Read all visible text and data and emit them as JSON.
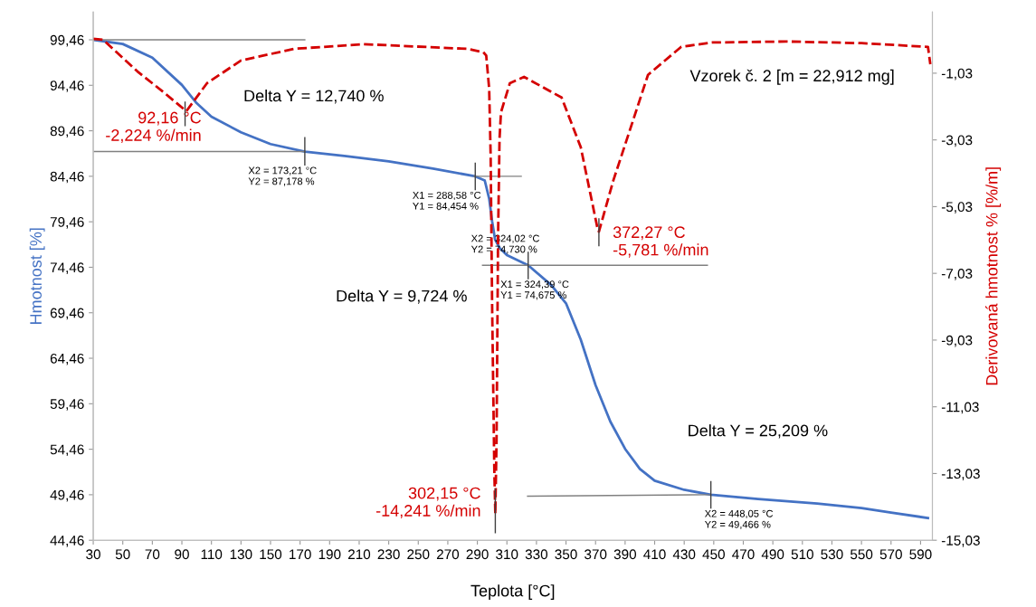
{
  "chart_data": {
    "type": "line",
    "xlabel": "Teplota [°C]",
    "ylabel": "Hmotnost [%]",
    "y2label": "Derivovaná hmotnost % [%/m]",
    "xlim": [
      30,
      598
    ],
    "xticks": [
      30,
      50,
      70,
      90,
      110,
      130,
      150,
      170,
      190,
      210,
      230,
      250,
      270,
      290,
      310,
      330,
      350,
      370,
      390,
      410,
      430,
      450,
      470,
      490,
      510,
      530,
      550,
      570,
      590
    ],
    "ylim": [
      44.46,
      102.5
    ],
    "yticks": [
      {
        "value": 44.46,
        "label": "44,46"
      },
      {
        "value": 49.46,
        "label": "49,46"
      },
      {
        "value": 54.46,
        "label": "54,46"
      },
      {
        "value": 59.46,
        "label": "59,46"
      },
      {
        "value": 64.46,
        "label": "64,46"
      },
      {
        "value": 69.46,
        "label": "69,46"
      },
      {
        "value": 74.46,
        "label": "74,46"
      },
      {
        "value": 79.46,
        "label": "79,46"
      },
      {
        "value": 84.46,
        "label": "84,46"
      },
      {
        "value": 89.46,
        "label": "89,46"
      },
      {
        "value": 94.46,
        "label": "94,46"
      },
      {
        "value": 99.46,
        "label": "99,46"
      }
    ],
    "y2lim": [
      -15.03,
      0.8
    ],
    "y2ticks": [
      {
        "value": -15.03,
        "label": "-15,03"
      },
      {
        "value": -13.03,
        "label": "-13,03"
      },
      {
        "value": -11.03,
        "label": "-11,03"
      },
      {
        "value": -9.03,
        "label": "-9,03"
      },
      {
        "value": -7.03,
        "label": "-7,03"
      },
      {
        "value": -5.03,
        "label": "-5,03"
      },
      {
        "value": -3.03,
        "label": "-3,03"
      },
      {
        "value": -1.03,
        "label": "-1,03"
      }
    ],
    "grid": false,
    "legend": false,
    "series": [
      {
        "color": "#4472c4",
        "line_style": "solid",
        "x": [
          30,
          50,
          70,
          90,
          100,
          110,
          130,
          150,
          173.21,
          200,
          230,
          260,
          288.58,
          295,
          298,
          300,
          302,
          305,
          310,
          324.39,
          340,
          350,
          360,
          370,
          380,
          390,
          400,
          410,
          430,
          448.05,
          480,
          520,
          550,
          570,
          595
        ],
        "values": [
          99.46,
          99.0,
          97.5,
          94.5,
          92.5,
          91.0,
          89.3,
          88.0,
          87.178,
          86.7,
          86.1,
          85.3,
          84.454,
          84.0,
          82.0,
          79.5,
          77.5,
          76.6,
          75.8,
          74.675,
          72.5,
          70.5,
          66.5,
          61.5,
          57.5,
          54.5,
          52.3,
          51.0,
          50.0,
          49.466,
          49.0,
          48.5,
          48.0,
          47.5,
          46.9
        ]
      },
      {
        "color": "#d40000",
        "line_style": "dashed",
        "axis": "y2",
        "x": [
          30,
          36.7,
          60,
          79,
          93,
          107,
          130,
          166,
          213,
          283,
          294,
          296,
          298,
          299,
          300,
          301.5,
          302.15,
          303,
          304,
          305,
          306,
          312,
          321.6,
          347,
          360,
          371.5,
          372.27,
          382,
          405.5,
          428,
          449,
          499,
          550,
          595,
          596.6
        ],
        "values": [
          0.0,
          -0.03,
          -0.98,
          -1.65,
          -2.17,
          -1.33,
          -0.65,
          -0.3,
          -0.16,
          -0.3,
          -0.4,
          -0.5,
          -1.5,
          -3.5,
          -8.0,
          -13.0,
          -14.241,
          -12.0,
          -6.0,
          -3.0,
          -2.2,
          -1.33,
          -1.14,
          -1.76,
          -3.25,
          -5.72,
          -5.781,
          -4.25,
          -1.08,
          -0.24,
          -0.11,
          -0.08,
          -0.13,
          -0.24,
          -0.76
        ]
      },
      {
        "color": "#808080",
        "line_style": "solid",
        "x": [
          30,
          173.21
        ],
        "values": [
          99.46,
          99.46
        ]
      },
      {
        "color": "#808080",
        "line_style": "solid",
        "x": [
          30,
          173.21
        ],
        "values": [
          87.178,
          87.178
        ]
      },
      {
        "color": "#808080",
        "line_style": "solid",
        "x": [
          287.5,
          319.7
        ],
        "values": [
          84.454,
          84.454
        ]
      },
      {
        "color": "#808080",
        "line_style": "solid",
        "x": [
          293.5,
          445.7
        ],
        "values": [
          74.675,
          74.675
        ]
      },
      {
        "color": "#808080",
        "line_style": "solid",
        "x": [
          324,
          448.05
        ],
        "values": [
          49.3,
          49.466
        ]
      },
      {
        "color": "#404040",
        "line_style": "solid",
        "x": [
          173.21,
          173.21
        ],
        "values": [
          85.7,
          88.7
        ]
      },
      {
        "color": "#404040",
        "line_style": "solid",
        "x": [
          288.58,
          288.58
        ],
        "values": [
          83.0,
          85.9
        ]
      },
      {
        "color": "#404040",
        "line_style": "solid",
        "x": [
          324.39,
          324.39
        ],
        "values": [
          73.2,
          76.1
        ]
      },
      {
        "color": "#404040",
        "line_style": "solid",
        "x": [
          448.05,
          448.05
        ],
        "values": [
          48.0,
          50.9
        ]
      },
      {
        "color": "#404040",
        "line_style": "solid",
        "axis": "y2",
        "x": [
          92.16,
          92.16
        ],
        "values": [
          -1.9,
          -2.6
        ]
      },
      {
        "color": "#404040",
        "line_style": "solid",
        "axis": "y2",
        "x": [
          302.15,
          302.15
        ],
        "values": [
          -13.5,
          -14.8
        ]
      },
      {
        "color": "#404040",
        "line_style": "solid",
        "axis": "y2",
        "x": [
          372.27,
          372.27
        ],
        "values": [
          -5.4,
          -6.2
        ]
      }
    ],
    "annotations": [
      "Vzorek č. 2 [m = 22,912 mg]",
      "Delta Y = 12,740 %",
      "Delta Y = 9,724 %",
      "Delta Y = 25,209 %",
      {
        "text": "X2 = 173,21 °C\nY2 = 87,178 %",
        "x": 173.21,
        "y": 87.178
      },
      {
        "text": "X1 = 288,58 °C\nY1 = 84,454 %",
        "x": 288.58,
        "y": 84.454
      },
      {
        "text": "X2 = 324,02 °C\nY2 = 74,730 %",
        "x": 324.02,
        "y": 74.73
      },
      {
        "text": "X1 = 324,39 °C\nY1 = 74,675 %",
        "x": 324.39,
        "y": 74.675
      },
      {
        "text": "X2 = 448,05 °C\nY2 = 49,466 %",
        "x": 448.05,
        "y": 49.466
      },
      "92,16 °C\n-2,224 %/min",
      "302,15 °C\n-14,241 %/min",
      "372,27 °C\n-5,781 %/min"
    ]
  }
}
